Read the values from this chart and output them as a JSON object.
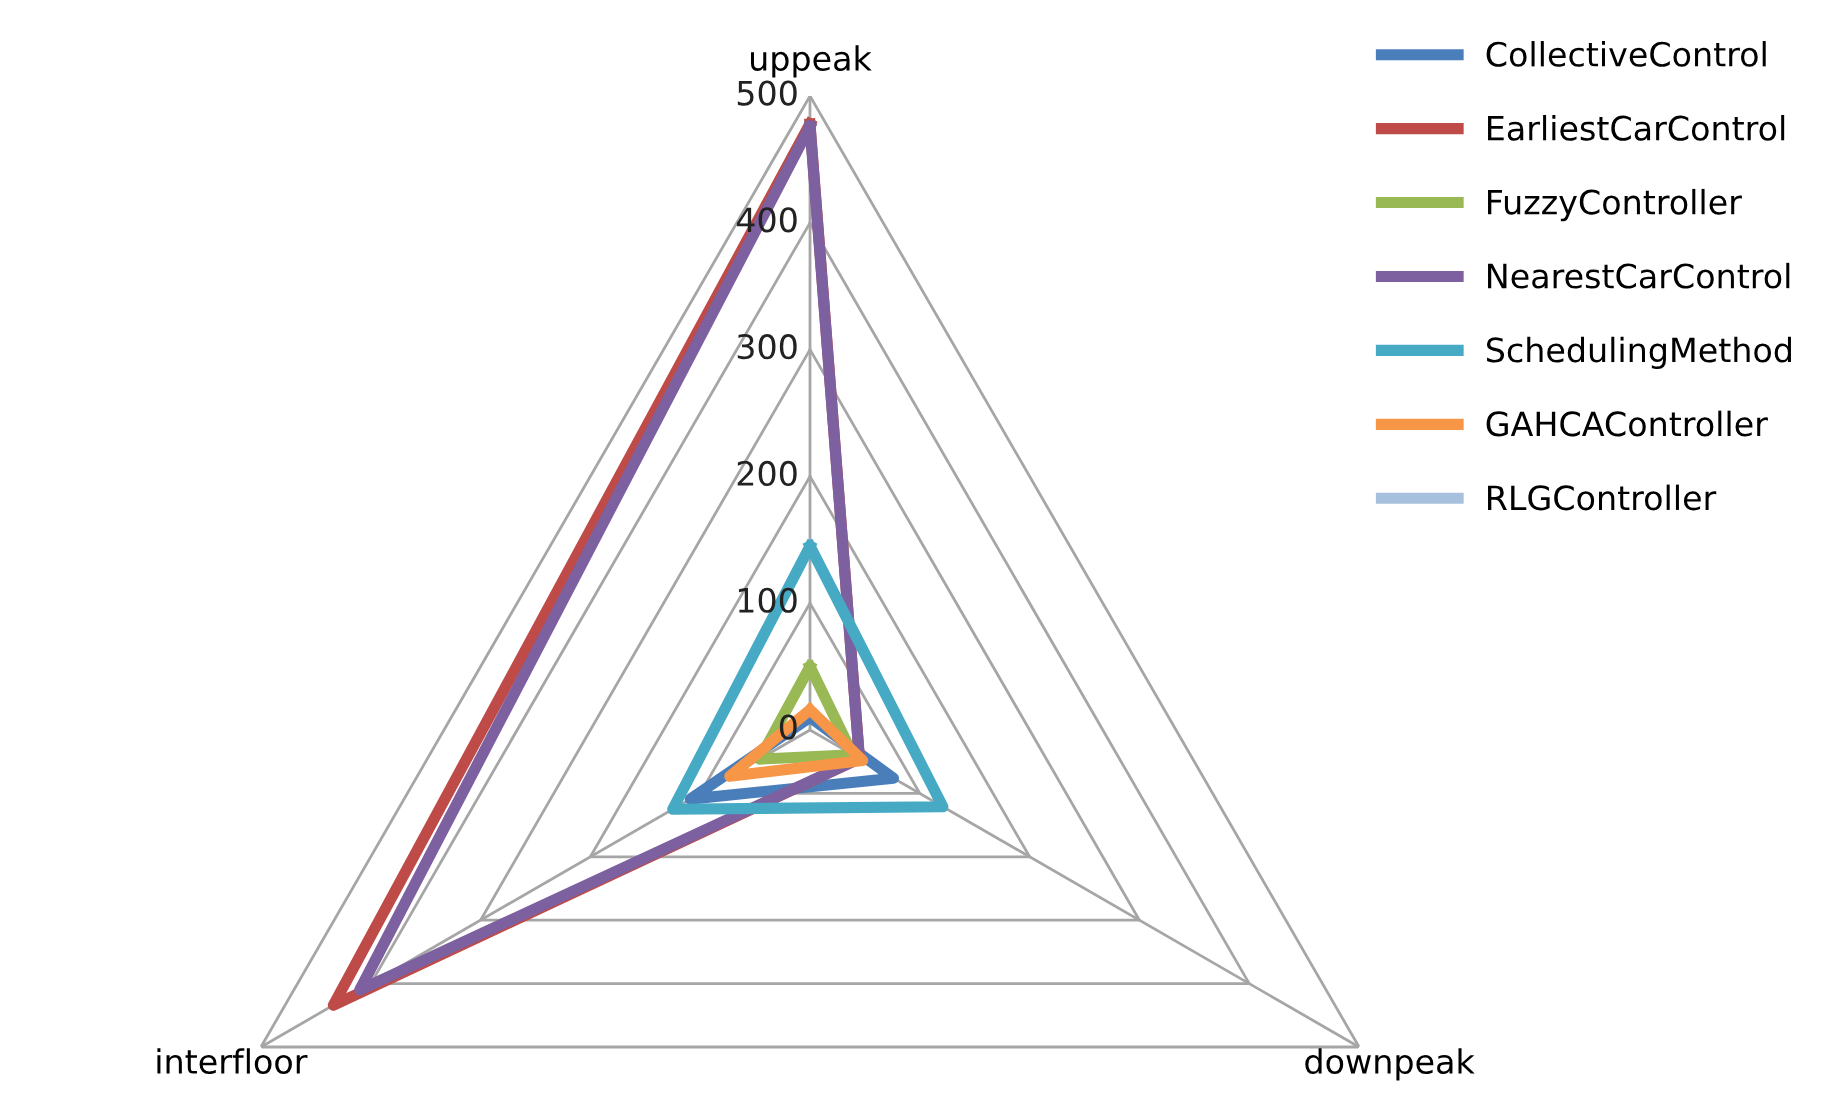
{
  "chart_data": {
    "type": "radar",
    "categories": [
      "uppeak",
      "downpeak",
      "interfloor"
    ],
    "ylim": [
      0,
      500
    ],
    "yticks": [
      0,
      100,
      200,
      300,
      400,
      500
    ],
    "grid": true,
    "legend": "right",
    "series": [
      {
        "name": "CollectiveControl",
        "color": "#4a7ebb",
        "values": [
          10,
          76,
          109
        ]
      },
      {
        "name": "EarliestCarControl",
        "color": "#be4b48",
        "values": [
          478,
          45,
          434
        ]
      },
      {
        "name": "FuzzyController",
        "color": "#98b954",
        "values": [
          50,
          39,
          46
        ]
      },
      {
        "name": "NearestCarControl",
        "color": "#7d60a0",
        "values": [
          476,
          45,
          410
        ]
      },
      {
        "name": "SchedulingMethod",
        "color": "#46aac5",
        "values": [
          145,
          121,
          125
        ]
      },
      {
        "name": "GAHCAController",
        "color": "#f79646",
        "values": [
          16,
          48,
          73
        ]
      },
      {
        "name": "RLGController",
        "color": "#a7c0de",
        "values": [
          null,
          null,
          null
        ]
      }
    ]
  }
}
